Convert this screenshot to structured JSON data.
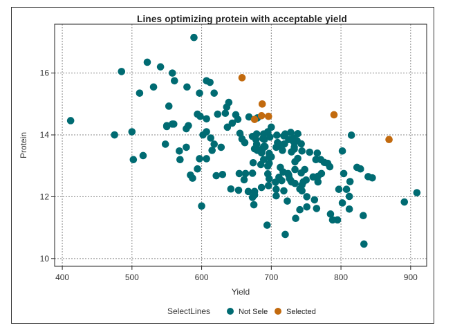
{
  "chart_data": {
    "type": "scatter",
    "title": "Lines optimizing protein with acceptable yield",
    "xlabel": "Yield",
    "ylabel": "Protein",
    "xlim": [
      389,
      923
    ],
    "ylim": [
      9.75,
      17.58
    ],
    "xticks": [
      400,
      500,
      600,
      700,
      800,
      900
    ],
    "yticks": [
      10,
      12,
      14,
      16
    ],
    "grid": true,
    "legend": {
      "title": "SelectLines",
      "position": "bottom",
      "entries": [
        {
          "name": "Not Sele",
          "color": "#006b72"
        },
        {
          "name": "Selected",
          "color": "#c26a0e"
        }
      ]
    },
    "series": [
      {
        "name": "Not Sele",
        "color": "#006b72",
        "points": [
          [
            412,
            14.46
          ],
          [
            475,
            14.0
          ],
          [
            500,
            14.1
          ],
          [
            485,
            16.05
          ],
          [
            522,
            16.35
          ],
          [
            541,
            16.2
          ],
          [
            558,
            16.0
          ],
          [
            561,
            15.75
          ],
          [
            531,
            15.55
          ],
          [
            511,
            15.35
          ],
          [
            553,
            14.93
          ],
          [
            560,
            14.35
          ],
          [
            550,
            14.27
          ],
          [
            548,
            13.7
          ],
          [
            502,
            13.2
          ],
          [
            516,
            13.33
          ],
          [
            568,
            13.48
          ],
          [
            578,
            13.6
          ],
          [
            569,
            13.2
          ],
          [
            597,
            13.23
          ],
          [
            607,
            13.23
          ],
          [
            594,
            12.9
          ],
          [
            584,
            12.7
          ],
          [
            587,
            12.6
          ],
          [
            600,
            11.7
          ],
          [
            602,
            14.0
          ],
          [
            607,
            14.1
          ],
          [
            613,
            13.9
          ],
          [
            615,
            13.5
          ],
          [
            550,
            14.3
          ],
          [
            558,
            14.35
          ],
          [
            578,
            14.2
          ],
          [
            581,
            14.3
          ],
          [
            589,
            17.15
          ],
          [
            607,
            15.75
          ],
          [
            612,
            15.7
          ],
          [
            618,
            15.35
          ],
          [
            597,
            15.35
          ],
          [
            579,
            15.55
          ],
          [
            639,
            15.05
          ],
          [
            636,
            14.9
          ],
          [
            634,
            14.7
          ],
          [
            623,
            14.67
          ],
          [
            649,
            14.65
          ],
          [
            652,
            14.5
          ],
          [
            594,
            14.67
          ],
          [
            598,
            14.6
          ],
          [
            607,
            14.52
          ],
          [
            644,
            14.38
          ],
          [
            637,
            14.25
          ],
          [
            680,
            14.55
          ],
          [
            668,
            14.58
          ],
          [
            655,
            14.05
          ],
          [
            658,
            13.87
          ],
          [
            618,
            13.7
          ],
          [
            673,
            13.95
          ],
          [
            662,
            13.75
          ],
          [
            690,
            13.85
          ],
          [
            691,
            13.62
          ],
          [
            684,
            13.48
          ],
          [
            679,
            13.7
          ],
          [
            689,
            13.62
          ],
          [
            686,
            13.42
          ],
          [
            682,
            13.52
          ],
          [
            697,
            13.4
          ],
          [
            697,
            13.08
          ],
          [
            700,
            14.25
          ],
          [
            695,
            14.1
          ],
          [
            689,
            14.03
          ],
          [
            679,
            14.03
          ],
          [
            698,
            13.93
          ],
          [
            688,
            13.88
          ],
          [
            678,
            13.85
          ],
          [
            708,
            13.99
          ],
          [
            718,
            13.97
          ],
          [
            709,
            13.75
          ],
          [
            719,
            13.71
          ],
          [
            733,
            13.75
          ],
          [
            725,
            13.85
          ],
          [
            720,
            14.03
          ],
          [
            728,
            14.08
          ],
          [
            731,
            13.81
          ],
          [
            733,
            13.54
          ],
          [
            729,
            13.45
          ],
          [
            676,
            13.55
          ],
          [
            679,
            13.56
          ],
          [
            680,
            13.5
          ],
          [
            687,
            13.52
          ],
          [
            697,
            13.29
          ],
          [
            707,
            13.6
          ],
          [
            712,
            13.69
          ],
          [
            716,
            13.5
          ],
          [
            700,
            13.29
          ],
          [
            689,
            13.2
          ],
          [
            685,
            13.04
          ],
          [
            695,
            12.99
          ],
          [
            674,
            13.1
          ],
          [
            673,
            12.76
          ],
          [
            663,
            12.75
          ],
          [
            661,
            12.55
          ],
          [
            713,
            12.95
          ],
          [
            717,
            12.8
          ],
          [
            711,
            12.63
          ],
          [
            715,
            12.52
          ],
          [
            725,
            12.7
          ],
          [
            728,
            12.52
          ],
          [
            695,
            12.74
          ],
          [
            697,
            12.58
          ],
          [
            696,
            12.36
          ],
          [
            738,
            14.04
          ],
          [
            732,
            13.9
          ],
          [
            737,
            13.81
          ],
          [
            743,
            13.71
          ],
          [
            733,
            13.6
          ],
          [
            744,
            13.48
          ],
          [
            755,
            13.44
          ],
          [
            766,
            13.41
          ],
          [
            738,
            13.24
          ],
          [
            734,
            13.13
          ],
          [
            764,
            13.2
          ],
          [
            771,
            13.2
          ],
          [
            776,
            13.11
          ],
          [
            781,
            13.08
          ],
          [
            784,
            12.97
          ],
          [
            734,
            12.88
          ],
          [
            748,
            12.88
          ],
          [
            743,
            12.77
          ],
          [
            772,
            12.75
          ],
          [
            767,
            12.66
          ],
          [
            724,
            12.75
          ],
          [
            726,
            12.59
          ],
          [
            729,
            12.48
          ],
          [
            760,
            12.64
          ],
          [
            767,
            12.48
          ],
          [
            746,
            12.48
          ],
          [
            815,
            13.99
          ],
          [
            802,
            13.48
          ],
          [
            823,
            12.95
          ],
          [
            804,
            12.75
          ],
          [
            813,
            12.49
          ],
          [
            797,
            12.24
          ],
          [
            808,
            12.24
          ],
          [
            812,
            12.01
          ],
          [
            802,
            11.8
          ],
          [
            812,
            11.6
          ],
          [
            832,
            11.39
          ],
          [
            833,
            10.47
          ],
          [
            839,
            12.65
          ],
          [
            828,
            12.9
          ],
          [
            845,
            12.61
          ],
          [
            909,
            12.13
          ],
          [
            891,
            11.83
          ],
          [
            628,
            13.6
          ],
          [
            621,
            12.68
          ],
          [
            630,
            12.72
          ],
          [
            642,
            12.25
          ],
          [
            653,
            12.21
          ],
          [
            654,
            12.75
          ],
          [
            667,
            12.17
          ],
          [
            673,
            11.98
          ],
          [
            675,
            11.74
          ],
          [
            686,
            12.3
          ],
          [
            676,
            12.17
          ],
          [
            676,
            12.06
          ],
          [
            706,
            12.47
          ],
          [
            707,
            12.24
          ],
          [
            718,
            12.19
          ],
          [
            734,
            12.43
          ],
          [
            744,
            12.38
          ],
          [
            741,
            12.25
          ],
          [
            744,
            12.19
          ],
          [
            750,
            12.54
          ],
          [
            707,
            12.03
          ],
          [
            723,
            11.86
          ],
          [
            751,
            12.0
          ],
          [
            762,
            11.9
          ],
          [
            751,
            11.67
          ],
          [
            741,
            11.58
          ],
          [
            765,
            11.62
          ],
          [
            785,
            11.44
          ],
          [
            795,
            11.25
          ],
          [
            788,
            11.25
          ],
          [
            694,
            11.08
          ],
          [
            720,
            10.78
          ],
          [
            735,
            11.3
          ]
        ]
      },
      {
        "name": "Selected",
        "color": "#c26a0e",
        "points": [
          [
            658,
            15.85
          ],
          [
            687,
            15.0
          ],
          [
            686,
            14.62
          ],
          [
            696,
            14.6
          ],
          [
            676,
            14.5
          ],
          [
            790,
            14.65
          ],
          [
            869,
            13.85
          ]
        ]
      }
    ]
  }
}
